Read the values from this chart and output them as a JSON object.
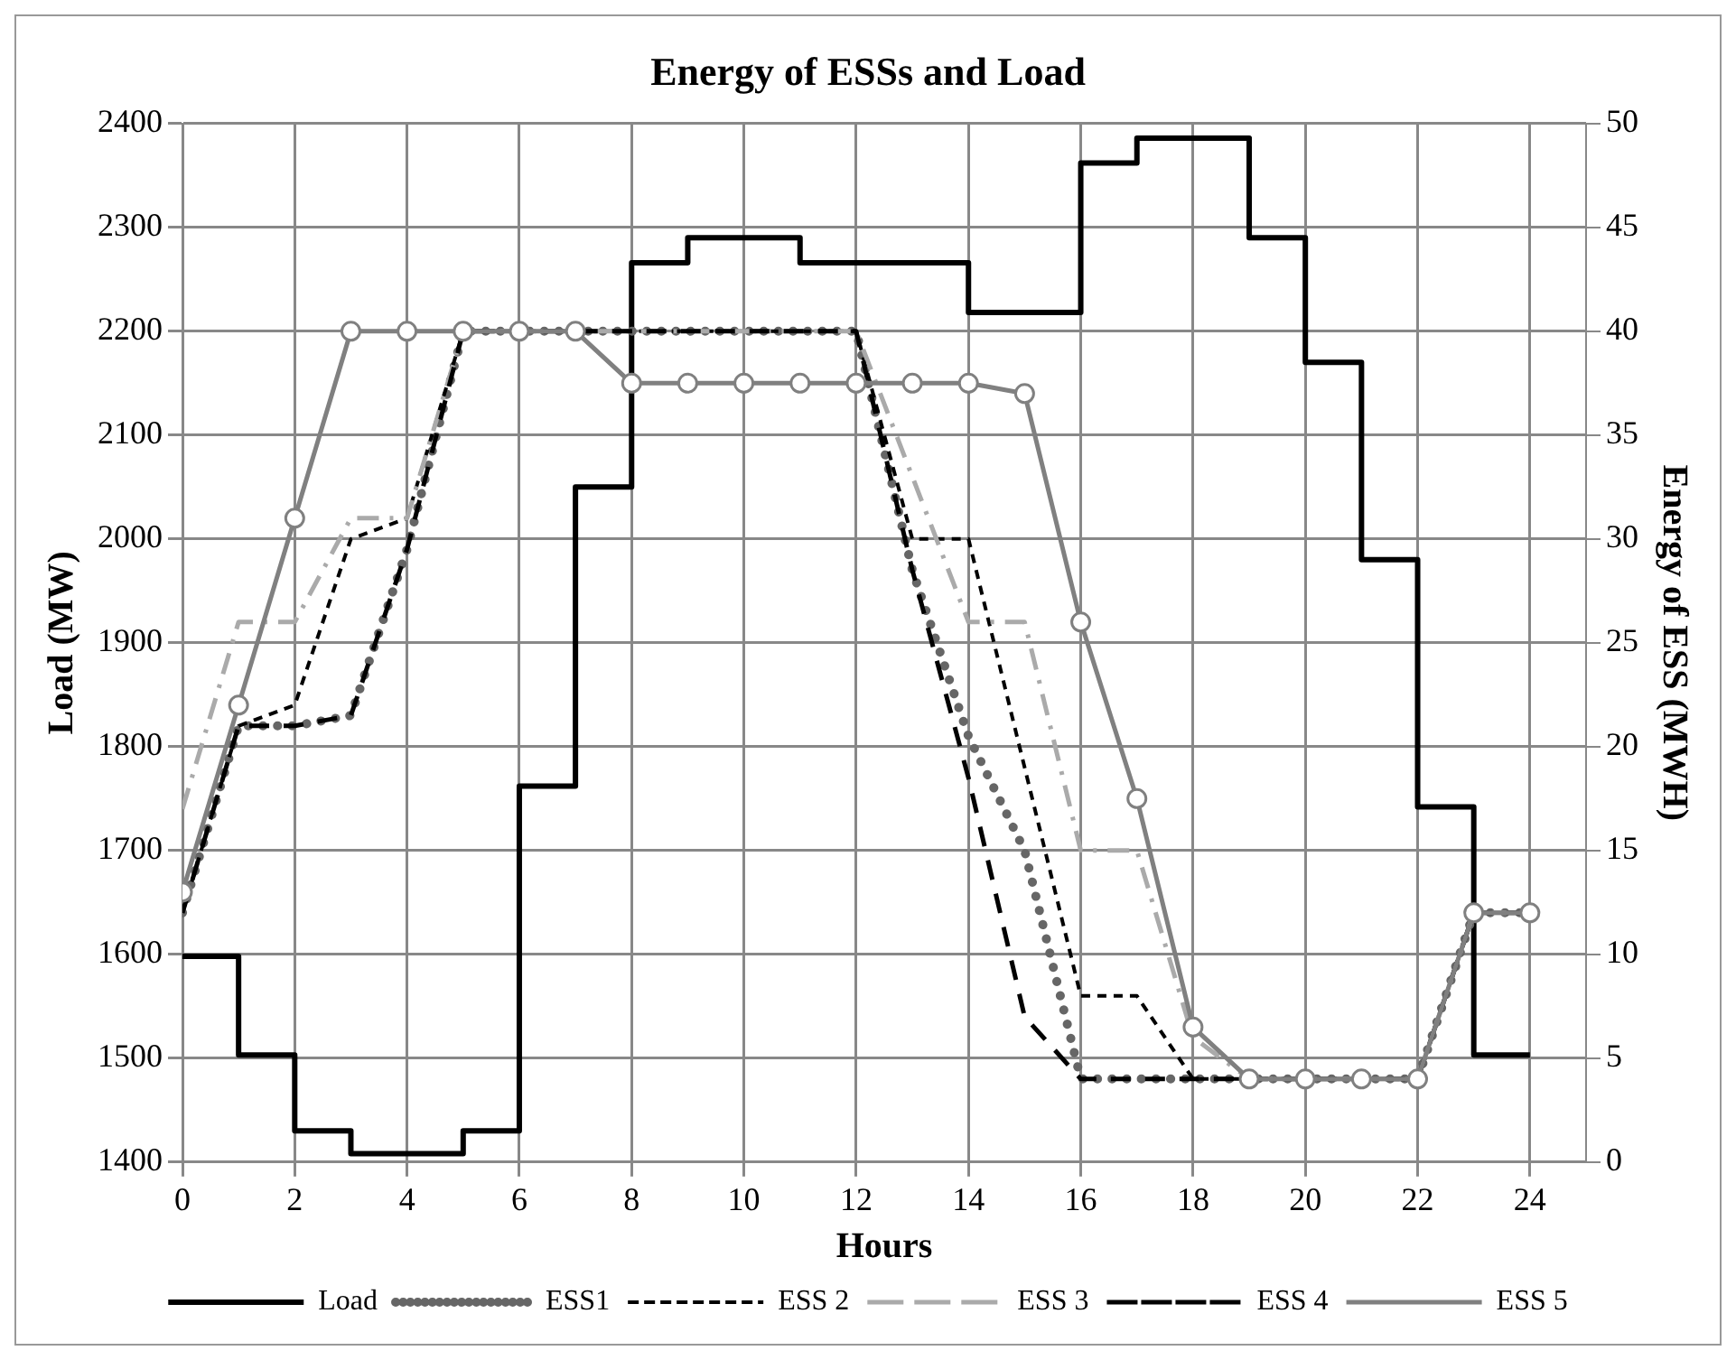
{
  "chart_data": {
    "type": "line",
    "title": "Energy of ESSs and Load",
    "xlabel": "Hours",
    "ylabel": "Load (MW)",
    "y2label": "Energy of ESS (MWH)",
    "x": [
      0,
      1,
      2,
      3,
      4,
      5,
      6,
      7,
      8,
      9,
      10,
      11,
      12,
      13,
      14,
      15,
      16,
      17,
      18,
      19,
      20,
      21,
      22,
      23,
      24
    ],
    "series": [
      {
        "name": "Load",
        "type": "step",
        "color": "#000000",
        "line_style": "solid",
        "marker": "none",
        "values": [
          1598,
          1503,
          1430,
          1408,
          1408,
          1430,
          1762,
          2050,
          2266,
          2290,
          2290,
          2266,
          2266,
          2266,
          2218,
          2218,
          2362,
          2386,
          2386,
          2290,
          2170,
          1980,
          1742,
          1503,
          1503
        ]
      },
      {
        "name": "ESS1",
        "type": "line",
        "axis": "y2",
        "color": "#666666",
        "line_style": "dotted",
        "marker": "none",
        "values": [
          12,
          21,
          21,
          21.5,
          29.5,
          40,
          40,
          40,
          40,
          40,
          40,
          40,
          40,
          28.5,
          20.5,
          15,
          4,
          4,
          4,
          4,
          4,
          4,
          4,
          12,
          12
        ]
      },
      {
        "name": "ESS 2",
        "type": "line",
        "axis": "y2",
        "color": "#000000",
        "line_style": "dashed",
        "marker": "none",
        "values": [
          12,
          21,
          22,
          30,
          31,
          40,
          40,
          40,
          40,
          40,
          40,
          40,
          40,
          30,
          30,
          19,
          8,
          8,
          4,
          4,
          4,
          4,
          4,
          12,
          12
        ]
      },
      {
        "name": "ESS 3",
        "type": "line",
        "axis": "y2",
        "color": "#aaaaaa",
        "line_style": "dashdot",
        "marker": "none",
        "values": [
          17,
          26,
          26,
          31,
          31,
          40,
          40,
          40,
          40,
          40,
          40,
          40,
          40,
          33,
          26,
          26,
          15,
          15,
          6,
          4,
          4,
          4,
          4,
          12,
          12
        ]
      },
      {
        "name": "ESS 4",
        "type": "line",
        "axis": "y2",
        "color": "#000000",
        "line_style": "longdash",
        "marker": "none",
        "values": [
          12,
          21,
          21,
          21.5,
          29.5,
          40,
          40,
          40,
          40,
          40,
          40,
          40,
          40,
          28.5,
          18.5,
          7,
          4,
          4,
          4,
          4,
          4,
          4,
          4,
          12,
          12
        ]
      },
      {
        "name": "ESS 5",
        "type": "line",
        "axis": "y2",
        "color": "#808080",
        "line_style": "solid",
        "marker": "circle",
        "values": [
          13,
          22,
          31,
          40,
          40,
          40,
          40,
          40,
          37.5,
          37.5,
          37.5,
          37.5,
          37.5,
          37.5,
          37.5,
          37,
          26,
          17.5,
          6.5,
          4,
          4,
          4,
          4,
          12,
          12
        ]
      }
    ],
    "xlim": [
      0,
      25
    ],
    "xticks": [
      0,
      2,
      4,
      6,
      8,
      10,
      12,
      14,
      16,
      18,
      20,
      22,
      24
    ],
    "ylim": [
      1400,
      2400
    ],
    "yticks": [
      1400,
      1500,
      1600,
      1700,
      1800,
      1900,
      2000,
      2100,
      2200,
      2300,
      2400
    ],
    "y2lim": [
      0,
      50
    ],
    "y2ticks": [
      0,
      5,
      10,
      15,
      20,
      25,
      30,
      35,
      40,
      45,
      50
    ],
    "grid": true,
    "legend": "bottom"
  }
}
